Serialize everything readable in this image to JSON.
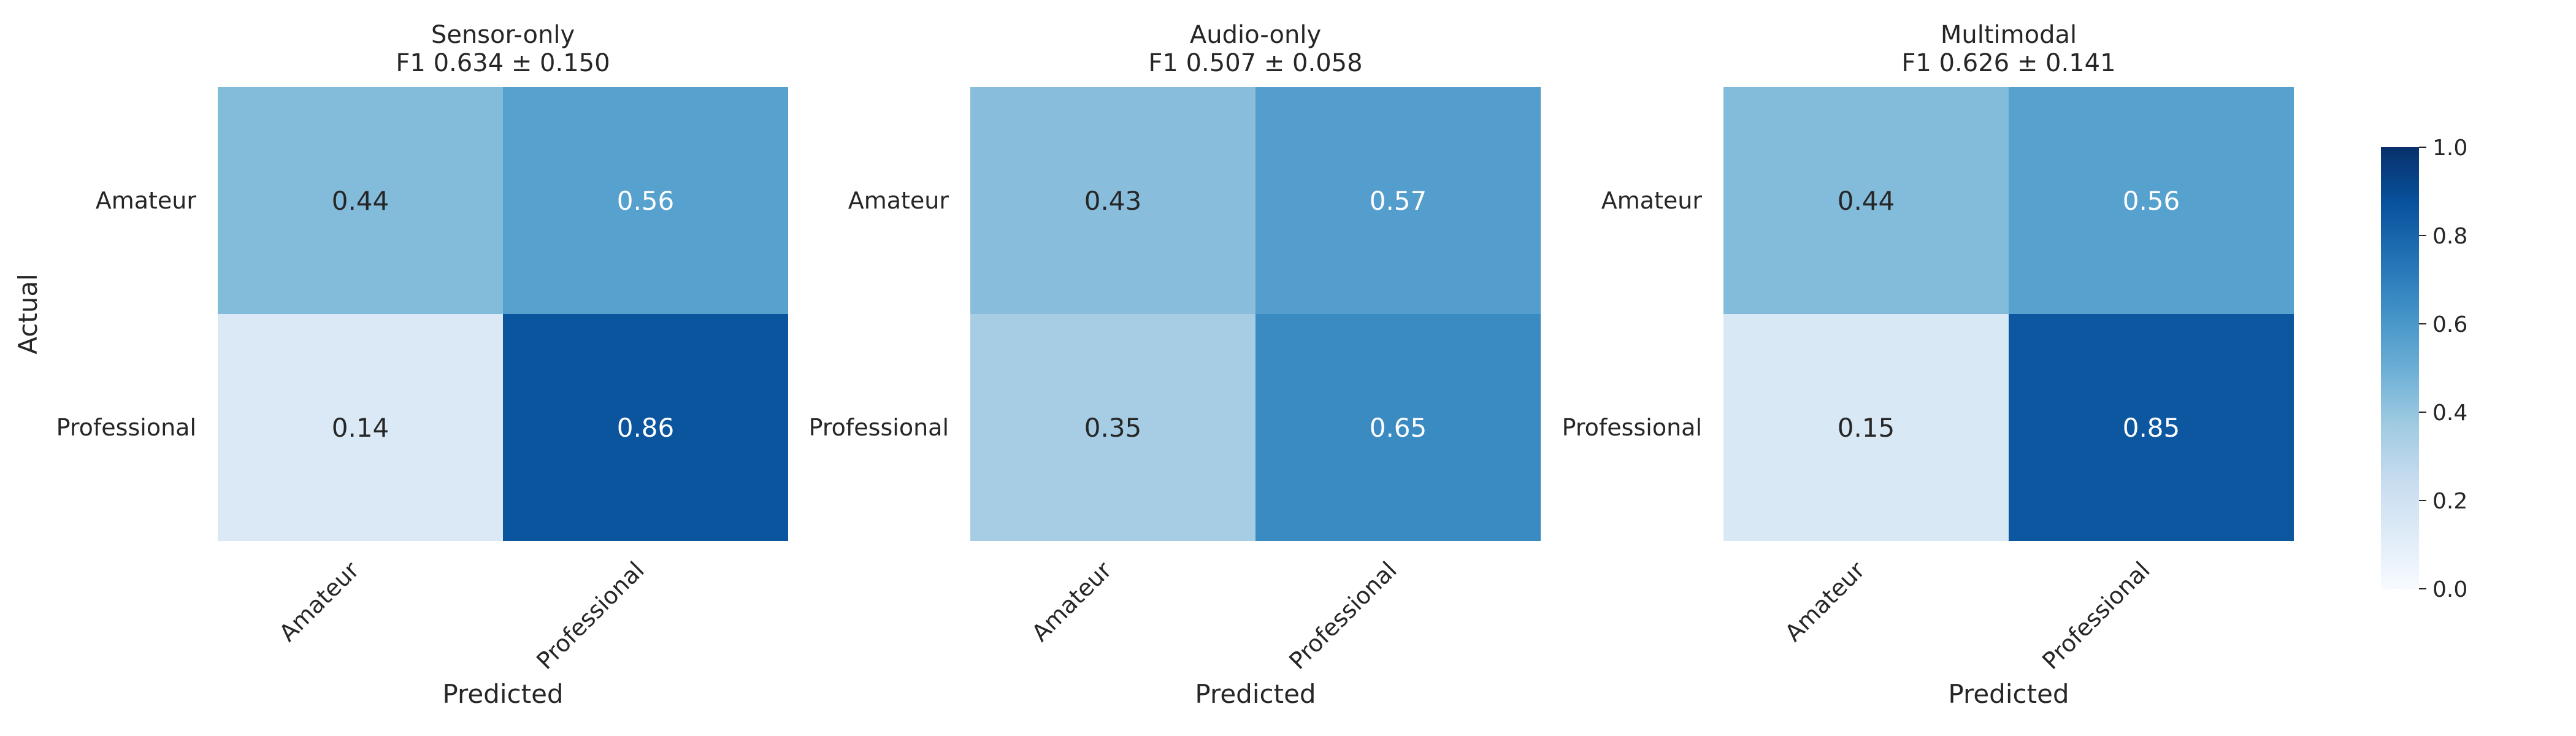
{
  "chart_data": {
    "type": "heatmap",
    "colormap": "Blues",
    "value_range": [
      0.0,
      1.0
    ],
    "colorbar": {
      "ticks": [
        "0.0",
        "0.2",
        "0.4",
        "0.6",
        "0.8",
        "1.0"
      ],
      "tick_values": [
        0.0,
        0.2,
        0.4,
        0.6,
        0.8,
        1.0
      ]
    },
    "ylabel": "Actual",
    "xlabel": "Predicted",
    "row_labels": [
      "Amateur",
      "Professional"
    ],
    "col_labels": [
      "Amateur",
      "Professional"
    ],
    "panels": [
      {
        "title": "Sensor-only",
        "subtitle": "F1 0.634 ± 0.150",
        "matrix": [
          [
            0.44,
            0.56
          ],
          [
            0.14,
            0.86
          ]
        ],
        "cell_labels": [
          [
            "0.44",
            "0.56"
          ],
          [
            "0.14",
            "0.86"
          ]
        ]
      },
      {
        "title": "Audio-only",
        "subtitle": "F1 0.507 ± 0.058",
        "matrix": [
          [
            0.43,
            0.57
          ],
          [
            0.35,
            0.65
          ]
        ],
        "cell_labels": [
          [
            "0.43",
            "0.57"
          ],
          [
            "0.35",
            "0.65"
          ]
        ]
      },
      {
        "title": "Multimodal",
        "subtitle": "F1 0.626 ± 0.141",
        "matrix": [
          [
            0.44,
            0.56
          ],
          [
            0.15,
            0.85
          ]
        ],
        "cell_labels": [
          [
            "0.44",
            "0.56"
          ],
          [
            "0.15",
            "0.85"
          ]
        ]
      }
    ]
  }
}
